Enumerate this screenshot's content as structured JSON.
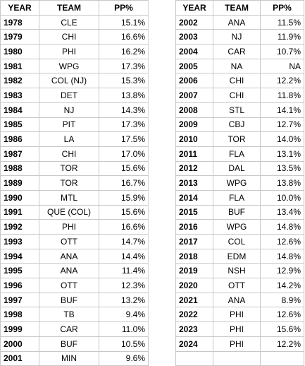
{
  "headers": {
    "year": "YEAR",
    "team": "TEAM",
    "pp": "PP%"
  },
  "left_rows": [
    {
      "year": "1978",
      "team": "CLE",
      "pp": "15.1%"
    },
    {
      "year": "1979",
      "team": "CHI",
      "pp": "16.6%"
    },
    {
      "year": "1980",
      "team": "PHI",
      "pp": "16.2%"
    },
    {
      "year": "1981",
      "team": "WPG",
      "pp": "17.3%"
    },
    {
      "year": "1982",
      "team": "COL (NJ)",
      "pp": "15.3%"
    },
    {
      "year": "1983",
      "team": "DET",
      "pp": "13.8%"
    },
    {
      "year": "1984",
      "team": "NJ",
      "pp": "14.3%"
    },
    {
      "year": "1985",
      "team": "PIT",
      "pp": "17.3%"
    },
    {
      "year": "1986",
      "team": "LA",
      "pp": "17.5%"
    },
    {
      "year": "1987",
      "team": "CHI",
      "pp": "17.0%"
    },
    {
      "year": "1988",
      "team": "TOR",
      "pp": "15.6%"
    },
    {
      "year": "1989",
      "team": "TOR",
      "pp": "16.7%"
    },
    {
      "year": "1990",
      "team": "MTL",
      "pp": "15.9%"
    },
    {
      "year": "1991",
      "team": "QUE (COL)",
      "pp": "15.6%"
    },
    {
      "year": "1992",
      "team": "PHI",
      "pp": "16.6%"
    },
    {
      "year": "1993",
      "team": "OTT",
      "pp": "14.7%"
    },
    {
      "year": "1994",
      "team": "ANA",
      "pp": "14.4%"
    },
    {
      "year": "1995",
      "team": "ANA",
      "pp": "11.4%"
    },
    {
      "year": "1996",
      "team": "OTT",
      "pp": "12.3%"
    },
    {
      "year": "1997",
      "team": "BUF",
      "pp": "13.2%"
    },
    {
      "year": "1998",
      "team": "TB",
      "pp": "9.4%"
    },
    {
      "year": "1999",
      "team": "CAR",
      "pp": "11.0%"
    },
    {
      "year": "2000",
      "team": "BUF",
      "pp": "10.5%"
    },
    {
      "year": "2001",
      "team": "MIN",
      "pp": "9.6%"
    }
  ],
  "right_rows": [
    {
      "year": "2002",
      "team": "ANA",
      "pp": "11.5%"
    },
    {
      "year": "2003",
      "team": "NJ",
      "pp": "11.9%"
    },
    {
      "year": "2004",
      "team": "CAR",
      "pp": "10.7%"
    },
    {
      "year": "2005",
      "team": "NA",
      "pp": "NA"
    },
    {
      "year": "2006",
      "team": "CHI",
      "pp": "12.2%"
    },
    {
      "year": "2007",
      "team": "CHI",
      "pp": "11.8%"
    },
    {
      "year": "2008",
      "team": "STL",
      "pp": "14.1%"
    },
    {
      "year": "2009",
      "team": "CBJ",
      "pp": "12.7%"
    },
    {
      "year": "2010",
      "team": "TOR",
      "pp": "14.0%"
    },
    {
      "year": "2011",
      "team": "FLA",
      "pp": "13.1%"
    },
    {
      "year": "2012",
      "team": "DAL",
      "pp": "13.5%"
    },
    {
      "year": "2013",
      "team": "WPG",
      "pp": "13.8%"
    },
    {
      "year": "2014",
      "team": "FLA",
      "pp": "10.0%"
    },
    {
      "year": "2015",
      "team": "BUF",
      "pp": "13.4%"
    },
    {
      "year": "2016",
      "team": "WPG",
      "pp": "14.8%"
    },
    {
      "year": "2017",
      "team": "COL",
      "pp": "12.6%"
    },
    {
      "year": "2018",
      "team": "EDM",
      "pp": "14.8%"
    },
    {
      "year": "2019",
      "team": "NSH",
      "pp": "12.9%"
    },
    {
      "year": "2020",
      "team": "OTT",
      "pp": "14.2%"
    },
    {
      "year": "2021",
      "team": "ANA",
      "pp": "8.9%"
    },
    {
      "year": "2022",
      "team": "PHI",
      "pp": "12.6%"
    },
    {
      "year": "2023",
      "team": "PHI",
      "pp": "15.6%"
    },
    {
      "year": "2024",
      "team": "PHI",
      "pp": "12.2%"
    }
  ]
}
